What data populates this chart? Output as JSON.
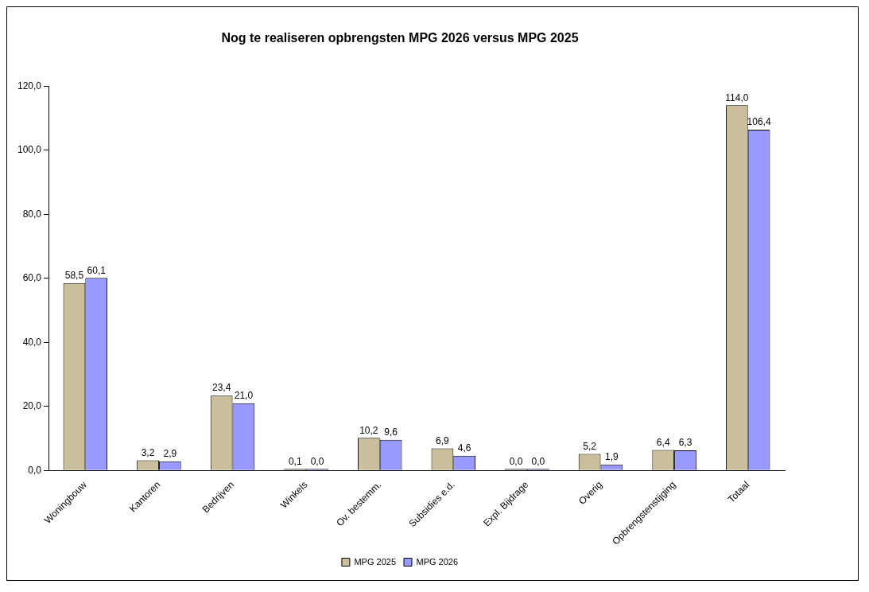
{
  "chart_data": {
    "type": "bar",
    "title": "Nog te realiseren opbrengsten MPG 2026 versus MPG 2025",
    "categories": [
      "Woningbouw",
      "Kantoren",
      "Bedrijven",
      "Winkels",
      "Ov. bestemm.",
      "Subsidies e.d.",
      "Expl. Bijdrage",
      "Overig",
      "Opbrengstenstijging",
      "Totaal"
    ],
    "series": [
      {
        "name": "MPG 2025",
        "color": "#c9bf9a",
        "values": [
          58.5,
          3.2,
          23.4,
          0.1,
          10.2,
          6.9,
          0.0,
          5.2,
          6.4,
          114.0
        ],
        "value_labels": [
          "58,5",
          "3,2",
          "23,4",
          "0,1",
          "10,2",
          "6,9",
          "0,0",
          "5,2",
          "6,4",
          "114,0"
        ]
      },
      {
        "name": "MPG 2026",
        "color": "#9999ff",
        "values": [
          60.1,
          2.9,
          21.0,
          0.0,
          9.6,
          4.6,
          0.0,
          1.9,
          6.3,
          106.4
        ],
        "value_labels": [
          "60,1",
          "2,9",
          "21,0",
          "0,0",
          "9,6",
          "4,6",
          "0,0",
          "1,9",
          "6,3",
          "106,4"
        ]
      }
    ],
    "ylim": [
      0,
      120
    ],
    "yticks": [
      {
        "value": 0,
        "label": "0,0"
      },
      {
        "value": 20,
        "label": "20,0"
      },
      {
        "value": 40,
        "label": "40,0"
      },
      {
        "value": 60,
        "label": "60,0"
      },
      {
        "value": 80,
        "label": "80,0"
      },
      {
        "value": 100,
        "label": "100,0"
      },
      {
        "value": 120,
        "label": "120,0"
      }
    ],
    "grid": false,
    "legend": "bottom"
  }
}
